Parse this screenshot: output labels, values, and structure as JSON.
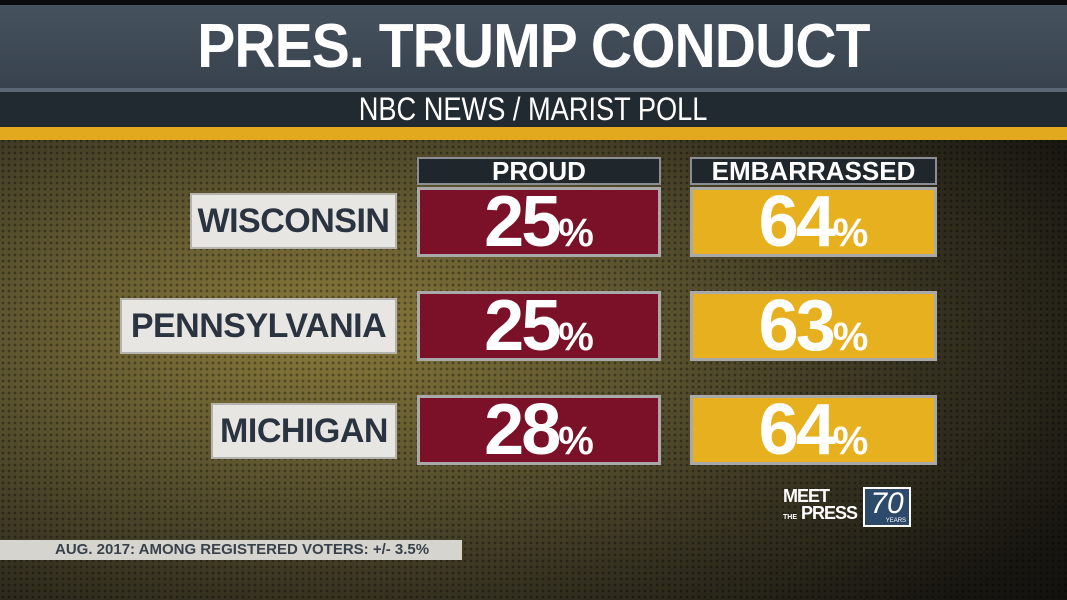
{
  "header": {
    "title": "PRES. TRUMP CONDUCT",
    "subtitle": "NBC NEWS / MARIST POLL"
  },
  "colors": {
    "proud": "#7b1128",
    "embarrassed": "#e7b01e",
    "accent_stripe": "#e2a91f",
    "header": "#3e4a55"
  },
  "chart_data": {
    "type": "table",
    "title": "PRES. TRUMP CONDUCT",
    "subtitle": "NBC NEWS / MARIST POLL",
    "columns": [
      "PROUD",
      "EMBARRASSED"
    ],
    "rows": [
      {
        "state": "WISCONSIN",
        "proud": "25",
        "embarrassed": "64"
      },
      {
        "state": "PENNSYLVANIA",
        "proud": "25",
        "embarrassed": "63"
      },
      {
        "state": "MICHIGAN",
        "proud": "28",
        "embarrassed": "64"
      }
    ],
    "unit": "%"
  },
  "footer": {
    "note": "AUG. 2017: AMONG REGISTERED VOTERS: +/- 3.5%"
  },
  "logo": {
    "text": "MEET THE PRESS",
    "badge": "70",
    "badge_sub": "YEARS"
  }
}
